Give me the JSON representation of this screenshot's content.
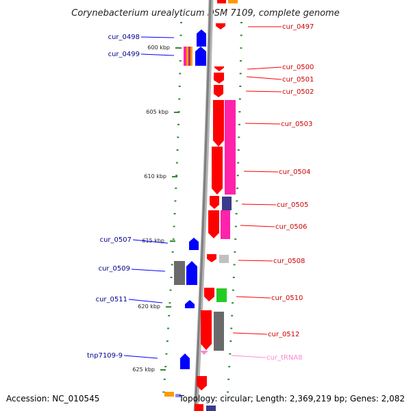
{
  "title": "Corynebacterium urealyticum DSM 7109, complete genome",
  "footer": {
    "accession": "Accession: NC_010545",
    "summary": "Topology: circular; Length: 2,369,219 bp; Genes: 2,082"
  },
  "colors": {
    "plus_strand": "#ff0000",
    "minus_strand": "#0000ff",
    "plus_label": "#cc0000",
    "minus_label": "#00008b",
    "trna_label": "#ff88cc",
    "backbone": "#888888",
    "ticks": "#2e8b2e",
    "cds_magenta": "#ff22aa",
    "cds_navy": "#3a3a8a",
    "cds_grey": "#6a6a6a",
    "cds_green": "#22cc22",
    "cds_orange": "#ff9900"
  },
  "scale": [
    {
      "label": "600 kbp"
    },
    {
      "label": "605 kbp"
    },
    {
      "label": "610 kbp"
    },
    {
      "label": "615 kbp"
    },
    {
      "label": "620 kbp"
    },
    {
      "label": "625 kbp"
    }
  ],
  "features_right": [
    {
      "name": "cur_0497"
    },
    {
      "name": "cur_0500"
    },
    {
      "name": "cur_0501"
    },
    {
      "name": "cur_0502"
    },
    {
      "name": "cur_0503"
    },
    {
      "name": "cur_0504"
    },
    {
      "name": "cur_0505"
    },
    {
      "name": "cur_0506"
    },
    {
      "name": "cur_0508"
    },
    {
      "name": "cur_0510"
    },
    {
      "name": "cur_0512"
    },
    {
      "name": "cur_tRNA8"
    }
  ],
  "features_left": [
    {
      "name": "cur_0498"
    },
    {
      "name": "cur_0499"
    },
    {
      "name": "cur_0507"
    },
    {
      "name": "cur_0509"
    },
    {
      "name": "cur_0511"
    },
    {
      "name": "tnp7109-9"
    }
  ]
}
